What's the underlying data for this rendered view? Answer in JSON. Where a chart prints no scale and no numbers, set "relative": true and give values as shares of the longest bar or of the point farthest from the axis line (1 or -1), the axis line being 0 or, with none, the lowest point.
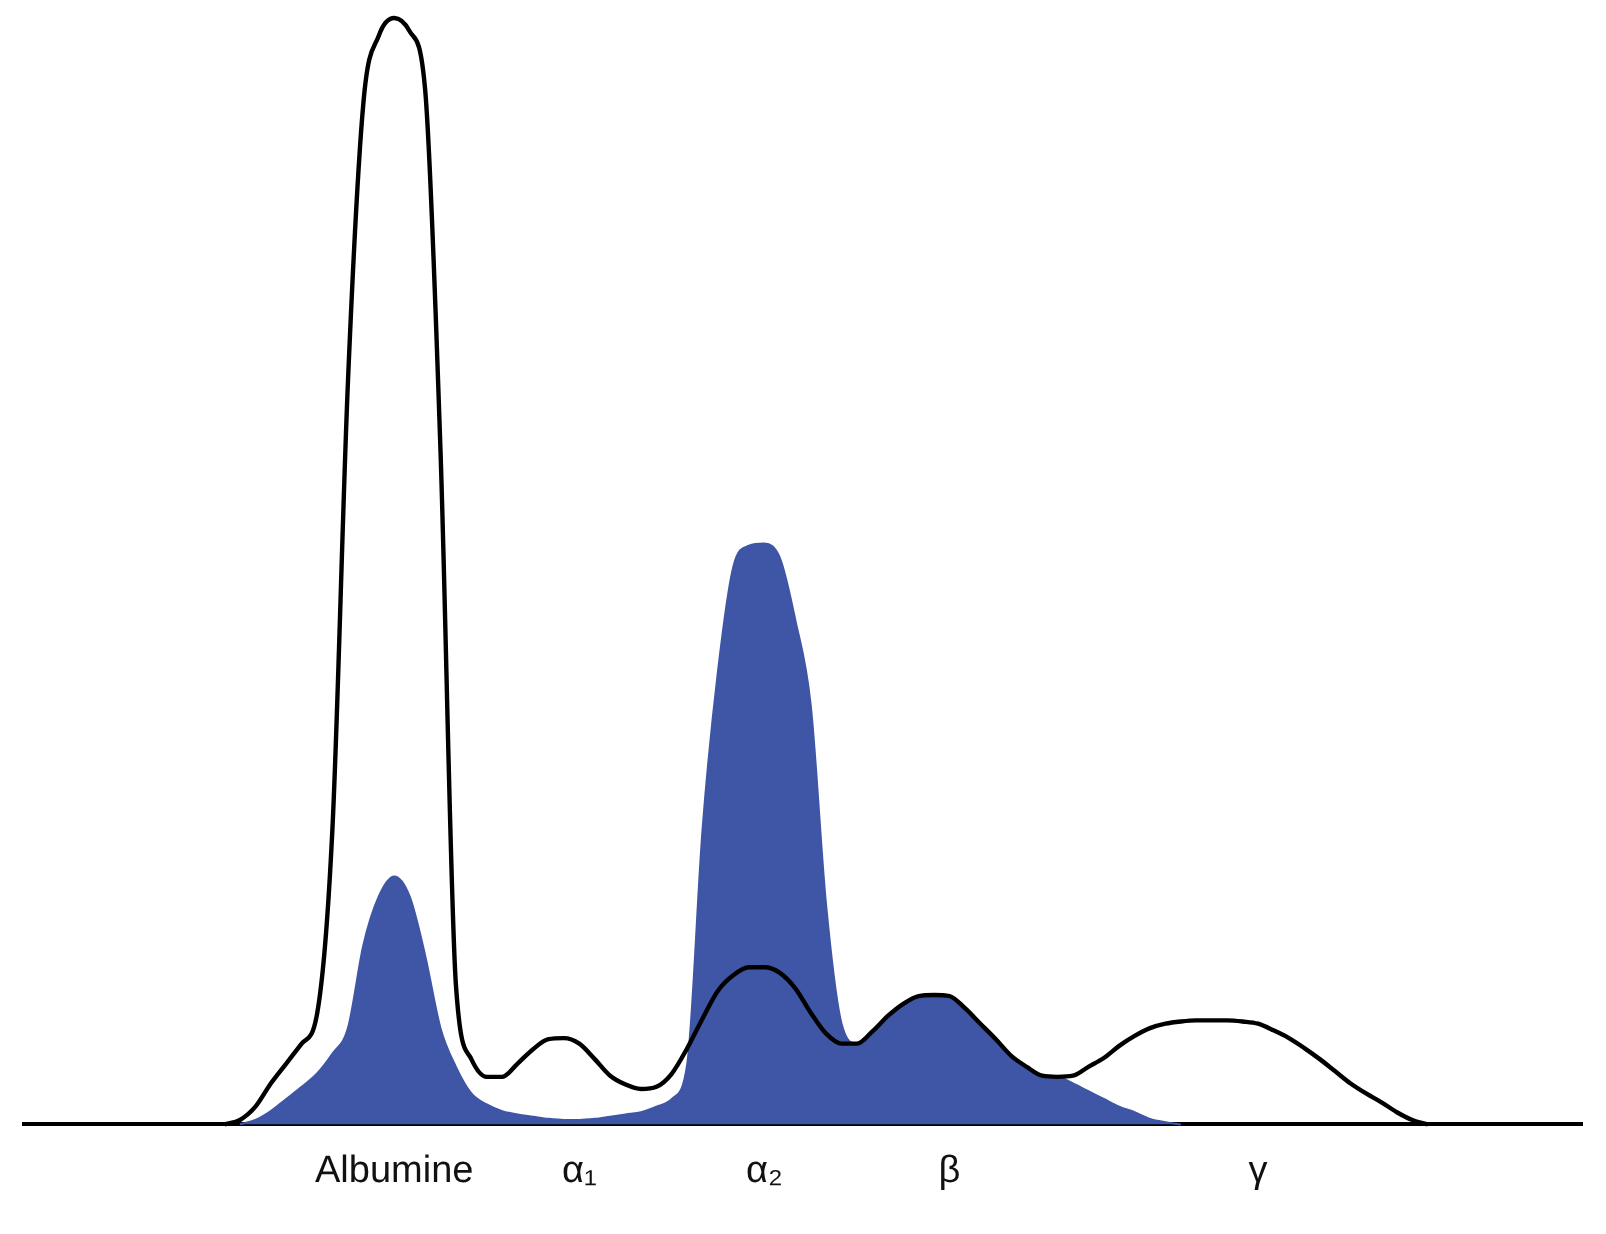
{
  "chart_data": {
    "type": "area",
    "relative": true,
    "tick_labels": "x",
    "marker": "none",
    "categories": [
      null,
      null,
      null,
      null,
      null,
      null,
      null,
      null,
      null,
      null,
      null,
      null,
      null,
      null,
      null,
      null,
      null,
      null,
      null,
      null,
      null,
      null,
      null,
      null,
      "Albumine",
      null,
      null,
      null,
      null,
      null,
      null,
      null,
      null,
      null,
      null,
      null,
      "α₁",
      null,
      null,
      null,
      null,
      null,
      null,
      null,
      null,
      null,
      null,
      null,
      "α₂",
      null,
      null,
      null,
      null,
      null,
      null,
      null,
      null,
      null,
      null,
      null,
      "β",
      null,
      null,
      null,
      null,
      null,
      null,
      null,
      null,
      null,
      null,
      null,
      null,
      null,
      null,
      null,
      null,
      null,
      null,
      null,
      "γ",
      null,
      null,
      null,
      null,
      null,
      null,
      null,
      null,
      null,
      null,
      null,
      null,
      null,
      null,
      null,
      null,
      null,
      null,
      null,
      null,
      null
    ],
    "series": [
      {
        "type": "area",
        "color": "#3f55a5",
        "values": [
          null,
          null,
          null,
          null,
          null,
          null,
          null,
          null,
          null,
          null,
          null,
          null,
          null,
          null,
          0,
          0.004,
          0.012,
          0.023,
          0.034,
          0.046,
          0.064,
          0.087,
          0.162,
          0.206,
          0.224,
          0.206,
          0.153,
          0.087,
          0.052,
          0.028,
          0.018,
          0.012,
          0.009,
          0.007,
          0.005,
          0.004,
          0.004,
          0.005,
          0.007,
          0.009,
          0.011,
          0.016,
          0.023,
          0.055,
          0.269,
          0.411,
          0.505,
          0.523,
          0.525,
          0.512,
          0.456,
          0.379,
          0.198,
          0.091,
          0.073,
          0.084,
          0.098,
          0.109,
          0.116,
          0.117,
          0.116,
          0.105,
          0.091,
          0.077,
          0.062,
          0.052,
          0.044,
          0.043,
          0.037,
          0.03,
          0.023,
          0.016,
          0.011,
          0.005,
          0.002,
          0,
          null,
          null,
          null,
          null,
          null,
          null,
          null,
          null,
          null,
          null,
          null,
          null,
          null,
          null,
          null,
          null,
          null,
          null,
          null,
          null,
          null,
          null,
          null,
          null,
          null,
          null
        ]
      },
      {
        "type": "line",
        "color": "#000000",
        "values": [
          null,
          null,
          null,
          null,
          null,
          null,
          null,
          null,
          null,
          null,
          null,
          null,
          null,
          0,
          0.004,
          0.016,
          0.037,
          0.055,
          0.073,
          0.1,
          0.269,
          0.671,
          0.923,
          0.984,
          1,
          0.988,
          0.936,
          0.609,
          0.126,
          0.059,
          0.043,
          0.043,
          0.055,
          0.068,
          0.077,
          0.078,
          0.073,
          0.059,
          0.044,
          0.036,
          0.032,
          0.034,
          0.046,
          0.069,
          0.096,
          0.121,
          0.135,
          0.142,
          0.142,
          0.137,
          0.123,
          0.101,
          0.082,
          0.073,
          0.073,
          0.084,
          0.098,
          0.109,
          0.116,
          0.117,
          0.116,
          0.105,
          0.091,
          0.077,
          0.062,
          0.052,
          0.044,
          0.043,
          0.044,
          0.052,
          0.06,
          0.071,
          0.08,
          0.087,
          0.091,
          0.093,
          0.094,
          0.094,
          0.094,
          0.093,
          0.091,
          0.085,
          0.078,
          0.069,
          0.059,
          0.048,
          0.037,
          0.028,
          0.02,
          0.011,
          0.004,
          0,
          null,
          null,
          null,
          null,
          null,
          null,
          null,
          null,
          null,
          null
        ]
      }
    ]
  }
}
